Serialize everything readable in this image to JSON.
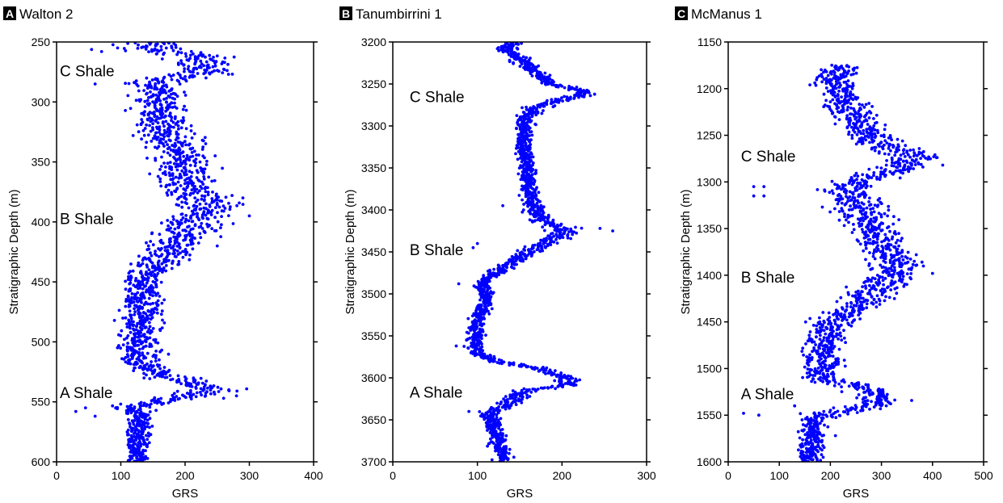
{
  "chart_data": [
    {
      "type": "scatter",
      "panel_letter": "A",
      "title": "Walton 2",
      "xlabel": "GRS",
      "ylabel": "Stratigraphic Depth (m)",
      "xlim": [
        0,
        400
      ],
      "ylim": [
        250,
        600
      ],
      "y_inverted": true,
      "xticks": [
        0,
        100,
        200,
        300,
        400
      ],
      "yticks": [
        250,
        300,
        350,
        400,
        450,
        500,
        550,
        600
      ],
      "grid": false,
      "marker_color": "#0000ff",
      "annotations": [
        {
          "text": "C Shale",
          "x": 5,
          "y": 274
        },
        {
          "text": "B Shale",
          "x": 5,
          "y": 397
        },
        {
          "text": "A Shale",
          "x": 5,
          "y": 542
        }
      ],
      "profile": [
        [
          250,
          140,
          55
        ],
        [
          257,
          150,
          60
        ],
        [
          262,
          220,
          40
        ],
        [
          268,
          230,
          45
        ],
        [
          272,
          225,
          40
        ],
        [
          278,
          215,
          40
        ],
        [
          285,
          140,
          35
        ],
        [
          292,
          165,
          30
        ],
        [
          300,
          160,
          30
        ],
        [
          310,
          160,
          35
        ],
        [
          320,
          165,
          35
        ],
        [
          330,
          175,
          40
        ],
        [
          340,
          185,
          40
        ],
        [
          350,
          190,
          40
        ],
        [
          360,
          195,
          40
        ],
        [
          370,
          205,
          40
        ],
        [
          380,
          220,
          40
        ],
        [
          385,
          235,
          40
        ],
        [
          390,
          230,
          40
        ],
        [
          400,
          215,
          35
        ],
        [
          410,
          200,
          35
        ],
        [
          420,
          185,
          35
        ],
        [
          430,
          165,
          35
        ],
        [
          440,
          145,
          30
        ],
        [
          450,
          135,
          25
        ],
        [
          460,
          135,
          25
        ],
        [
          470,
          135,
          25
        ],
        [
          480,
          132,
          25
        ],
        [
          490,
          130,
          25
        ],
        [
          500,
          130,
          25
        ],
        [
          510,
          130,
          25
        ],
        [
          520,
          135,
          25
        ],
        [
          528,
          170,
          30
        ],
        [
          535,
          215,
          35
        ],
        [
          540,
          235,
          35
        ],
        [
          545,
          200,
          40
        ],
        [
          550,
          150,
          25
        ],
        [
          555,
          120,
          30
        ],
        [
          560,
          130,
          15
        ],
        [
          570,
          128,
          15
        ],
        [
          580,
          128,
          15
        ],
        [
          590,
          125,
          15
        ],
        [
          600,
          125,
          15
        ]
      ],
      "outliers": [
        [
          255,
          95
        ],
        [
          258,
          70
        ],
        [
          285,
          60
        ],
        [
          380,
          290
        ],
        [
          395,
          300
        ],
        [
          420,
          250
        ],
        [
          545,
          280
        ],
        [
          547,
          260
        ],
        [
          555,
          45
        ],
        [
          558,
          30
        ],
        [
          562,
          60
        ],
        [
          575,
          110
        ]
      ]
    },
    {
      "type": "scatter",
      "panel_letter": "B",
      "title": "Tanumbirrini 1",
      "xlabel": "GRS",
      "ylabel": "Stratigraphic Depth (m)",
      "xlim": [
        0,
        300
      ],
      "ylim": [
        3200,
        3700
      ],
      "y_inverted": true,
      "xticks": [
        0,
        100,
        200,
        300
      ],
      "yticks": [
        3200,
        3250,
        3300,
        3350,
        3400,
        3450,
        3500,
        3550,
        3600,
        3650,
        3700
      ],
      "grid": false,
      "marker_color": "#0000ff",
      "annotations": [
        {
          "text": "C Shale",
          "x": 20,
          "y": 3265
        },
        {
          "text": "B Shale",
          "x": 20,
          "y": 3447
        },
        {
          "text": "A Shale",
          "x": 20,
          "y": 3617
        }
      ],
      "profile": [
        [
          3200,
          140,
          10
        ],
        [
          3210,
          135,
          10
        ],
        [
          3220,
          150,
          10
        ],
        [
          3230,
          160,
          10
        ],
        [
          3240,
          175,
          10
        ],
        [
          3250,
          185,
          10
        ],
        [
          3258,
          230,
          12
        ],
        [
          3265,
          220,
          12
        ],
        [
          3272,
          185,
          12
        ],
        [
          3280,
          165,
          12
        ],
        [
          3290,
          158,
          8
        ],
        [
          3300,
          155,
          8
        ],
        [
          3320,
          155,
          8
        ],
        [
          3340,
          158,
          8
        ],
        [
          3360,
          160,
          8
        ],
        [
          3380,
          162,
          8
        ],
        [
          3395,
          165,
          10
        ],
        [
          3405,
          170,
          12
        ],
        [
          3415,
          180,
          12
        ],
        [
          3422,
          200,
          15
        ],
        [
          3430,
          200,
          15
        ],
        [
          3440,
          180,
          12
        ],
        [
          3450,
          160,
          12
        ],
        [
          3460,
          145,
          10
        ],
        [
          3470,
          130,
          10
        ],
        [
          3480,
          112,
          8
        ],
        [
          3490,
          108,
          8
        ],
        [
          3500,
          110,
          8
        ],
        [
          3510,
          110,
          8
        ],
        [
          3520,
          105,
          8
        ],
        [
          3530,
          100,
          8
        ],
        [
          3540,
          98,
          8
        ],
        [
          3550,
          100,
          8
        ],
        [
          3560,
          95,
          8
        ],
        [
          3570,
          100,
          8
        ],
        [
          3580,
          120,
          10
        ],
        [
          3590,
          180,
          12
        ],
        [
          3600,
          205,
          12
        ],
        [
          3608,
          210,
          12
        ],
        [
          3615,
          160,
          12
        ],
        [
          3622,
          145,
          12
        ],
        [
          3630,
          140,
          12
        ],
        [
          3640,
          115,
          10
        ],
        [
          3650,
          118,
          8
        ],
        [
          3660,
          120,
          8
        ],
        [
          3670,
          125,
          8
        ],
        [
          3680,
          125,
          8
        ],
        [
          3690,
          130,
          8
        ],
        [
          3700,
          130,
          8
        ]
      ],
      "outliers": [
        [
          3422,
          245
        ],
        [
          3425,
          260
        ],
        [
          3440,
          100
        ],
        [
          3445,
          95
        ],
        [
          3488,
          78
        ],
        [
          3562,
          75
        ],
        [
          3640,
          90
        ],
        [
          3395,
          130
        ]
      ]
    },
    {
      "type": "scatter",
      "panel_letter": "C",
      "title": "McManus 1",
      "xlabel": "GRS",
      "ylabel": "Stratigraphic Depth (m)",
      "xlim": [
        0,
        500
      ],
      "ylim": [
        1150,
        1600
      ],
      "y_inverted": true,
      "xticks": [
        0,
        100,
        200,
        300,
        400,
        500
      ],
      "yticks": [
        1150,
        1200,
        1250,
        1300,
        1350,
        1400,
        1450,
        1500,
        1550,
        1600
      ],
      "grid": false,
      "marker_color": "#0000ff",
      "annotations": [
        {
          "text": "C Shale",
          "x": 25,
          "y": 1272
        },
        {
          "text": "B Shale",
          "x": 25,
          "y": 1402
        },
        {
          "text": "A Shale",
          "x": 25,
          "y": 1527
        }
      ],
      "profile": [
        [
          1175,
          220,
          30
        ],
        [
          1185,
          210,
          30
        ],
        [
          1195,
          205,
          35
        ],
        [
          1205,
          220,
          40
        ],
        [
          1215,
          235,
          40
        ],
        [
          1225,
          245,
          40
        ],
        [
          1235,
          255,
          40
        ],
        [
          1245,
          265,
          40
        ],
        [
          1255,
          285,
          40
        ],
        [
          1265,
          320,
          45
        ],
        [
          1272,
          370,
          45
        ],
        [
          1280,
          350,
          45
        ],
        [
          1290,
          310,
          45
        ],
        [
          1300,
          260,
          45
        ],
        [
          1310,
          230,
          40
        ],
        [
          1320,
          250,
          45
        ],
        [
          1330,
          260,
          45
        ],
        [
          1340,
          270,
          45
        ],
        [
          1350,
          285,
          45
        ],
        [
          1360,
          295,
          40
        ],
        [
          1370,
          305,
          40
        ],
        [
          1380,
          320,
          40
        ],
        [
          1390,
          330,
          40
        ],
        [
          1400,
          320,
          40
        ],
        [
          1410,
          300,
          40
        ],
        [
          1420,
          280,
          40
        ],
        [
          1430,
          260,
          40
        ],
        [
          1440,
          230,
          40
        ],
        [
          1450,
          200,
          35
        ],
        [
          1460,
          195,
          30
        ],
        [
          1470,
          190,
          30
        ],
        [
          1480,
          185,
          30
        ],
        [
          1490,
          185,
          30
        ],
        [
          1500,
          180,
          30
        ],
        [
          1510,
          185,
          30
        ],
        [
          1518,
          240,
          40
        ],
        [
          1525,
          290,
          40
        ],
        [
          1532,
          300,
          40
        ],
        [
          1540,
          280,
          40
        ],
        [
          1548,
          200,
          45
        ],
        [
          1555,
          170,
          25
        ],
        [
          1565,
          165,
          20
        ],
        [
          1575,
          165,
          20
        ],
        [
          1585,
          165,
          20
        ],
        [
          1595,
          160,
          20
        ],
        [
          1600,
          160,
          20
        ]
      ],
      "outliers": [
        [
          1305,
          50
        ],
        [
          1305,
          70
        ],
        [
          1315,
          50
        ],
        [
          1315,
          70
        ],
        [
          1548,
          30
        ],
        [
          1550,
          60
        ],
        [
          1540,
          130
        ],
        [
          1282,
          420
        ],
        [
          1398,
          400
        ],
        [
          1572,
          210
        ]
      ]
    }
  ]
}
